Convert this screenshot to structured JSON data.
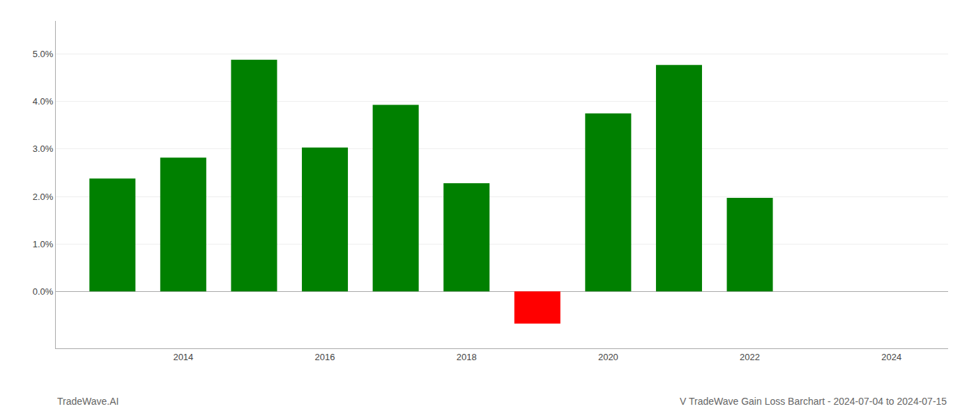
{
  "chart_data": {
    "type": "bar",
    "title": "V TradeWave Gain Loss Barchart - 2024-07-04 to 2024-07-15",
    "annotations": [
      "TradeWave.AI"
    ],
    "x": [
      2013,
      2014,
      2015,
      2016,
      2017,
      2018,
      2019,
      2020,
      2021,
      2022
    ],
    "values": [
      0.0238,
      0.0282,
      0.0488,
      0.0303,
      0.0393,
      0.0228,
      -0.0068,
      0.0375,
      0.0477,
      0.0197
    ],
    "colors": [
      "#008000",
      "#008000",
      "#008000",
      "#008000",
      "#008000",
      "#008000",
      "#ff0000",
      "#008000",
      "#008000",
      "#008000"
    ],
    "xlim": [
      2012.2,
      2024.8
    ],
    "xticks": [
      2014,
      2016,
      2018,
      2020,
      2022,
      2024
    ],
    "ylim": [
      -0.012,
      0.057
    ],
    "yticks": [
      {
        "value": 0.0,
        "label": "0.0%"
      },
      {
        "value": 0.01,
        "label": "1.0%"
      },
      {
        "value": 0.02,
        "label": "2.0%"
      },
      {
        "value": 0.03,
        "label": "3.0%"
      },
      {
        "value": 0.04,
        "label": "4.0%"
      },
      {
        "value": 0.05,
        "label": "5.0%"
      }
    ],
    "grid": true
  }
}
